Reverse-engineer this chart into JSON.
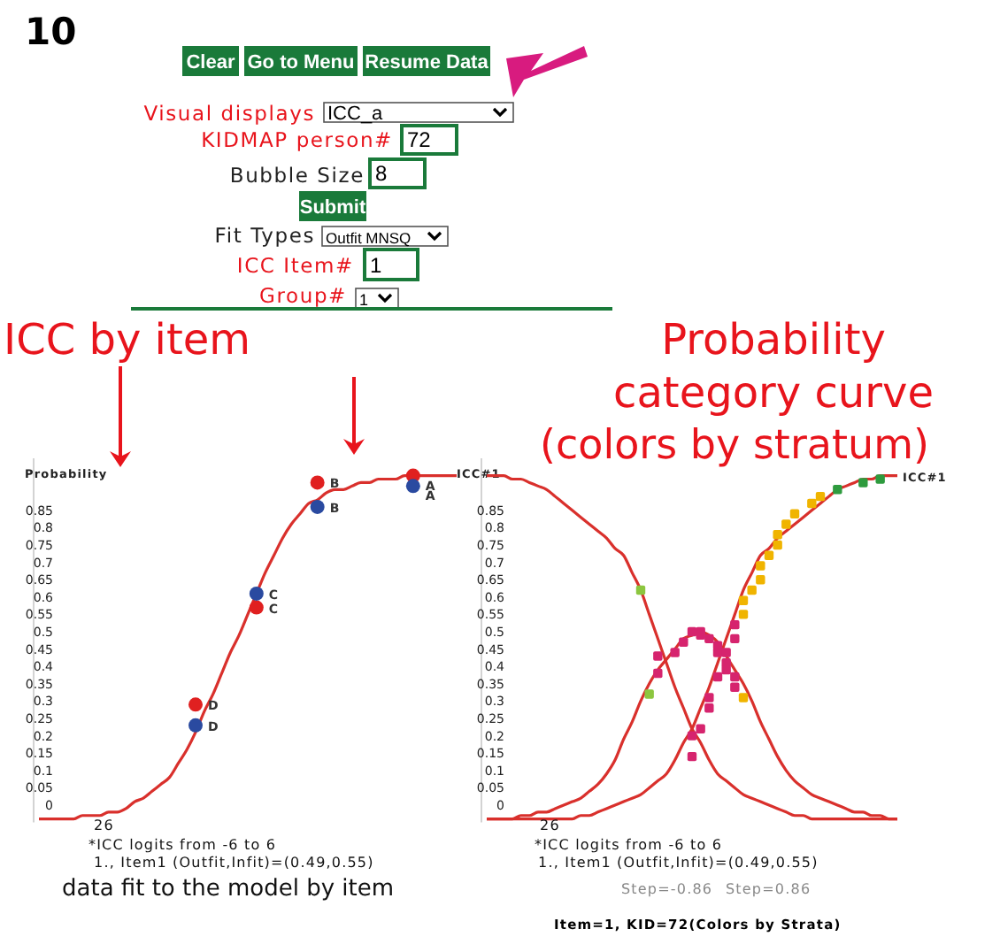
{
  "chart_data": [
    {
      "type": "other",
      "title": "10",
      "annotations": [
        "Clear",
        "Go to Menu",
        "Resume Data",
        "Visual displays",
        "ICC_a",
        "KIDMAP person#",
        "72",
        "Bubble Size",
        "8",
        "Submit",
        "Fit Types",
        "Outfit MNSQ",
        "ICC Item#",
        "1",
        "Group#",
        "1"
      ]
    },
    {
      "type": "line",
      "title": "ICC by item",
      "ylabel": "Probability",
      "ylim": [
        -0.05,
        1
      ],
      "yticks": [
        0,
        0.05,
        0.1,
        0.15,
        0.2,
        0.25,
        0.3,
        0.35,
        0.4,
        0.45,
        0.5,
        0.55,
        0.6,
        0.65,
        0.7,
        0.75,
        0.8,
        0.85
      ],
      "categories": [
        null,
        null,
        null,
        null,
        null,
        null,
        null,
        null,
        null,
        null,
        null,
        null,
        null,
        null,
        null,
        null,
        null,
        null,
        null,
        null,
        null,
        null,
        null,
        null,
        null,
        null,
        null,
        null,
        null,
        null,
        null,
        null,
        null,
        null,
        null,
        null,
        null,
        null,
        null,
        null,
        null,
        null,
        null,
        null,
        null,
        null,
        null,
        null,
        null
      ],
      "annotations": [
        "26",
        "*ICC logits from -6 to 6",
        "1., Item1 (Outfit,Infit)=(0.49,0.55)",
        "data fit to the model by item"
      ],
      "series": [
        {
          "type": "line",
          "color": "#d9302c",
          "values": [
            -0.04,
            -0.04,
            -0.04,
            -0.04,
            -0.04,
            -0.03,
            -0.03,
            -0.03,
            -0.02,
            -0.02,
            -0.01,
            0.01,
            0.02,
            0.04,
            0.06,
            0.08,
            0.12,
            0.16,
            0.21,
            0.27,
            0.32,
            0.38,
            0.44,
            0.49,
            0.55,
            0.61,
            0.67,
            0.72,
            0.77,
            0.81,
            0.84,
            0.87,
            0.88,
            0.9,
            0.91,
            0.91,
            0.92,
            0.93,
            0.93,
            0.94,
            0.94,
            0.94,
            0.95,
            0.95,
            0.95,
            0.95,
            0.95,
            0.95,
            0.95
          ]
        },
        {
          "type": "scatter",
          "marker": "circle",
          "color": "#e02020",
          "values": [
            null,
            null,
            null,
            null,
            null,
            null,
            null,
            null,
            null,
            null,
            null,
            null,
            null,
            null,
            null,
            null,
            null,
            null,
            0.29,
            null,
            null,
            null,
            null,
            null,
            null,
            0.57,
            null,
            null,
            null,
            null,
            null,
            null,
            0.93,
            null,
            null,
            null,
            null,
            null,
            null,
            null,
            null,
            null,
            null,
            0.95,
            null,
            null,
            null,
            null,
            null
          ],
          "value_labels": [
            null,
            null,
            null,
            null,
            null,
            null,
            null,
            null,
            null,
            null,
            null,
            null,
            null,
            null,
            null,
            null,
            null,
            null,
            "D",
            null,
            null,
            null,
            null,
            null,
            null,
            "C",
            null,
            null,
            null,
            null,
            null,
            null,
            "B",
            null,
            null,
            null,
            null,
            null,
            null,
            null,
            null,
            null,
            null,
            "A",
            null,
            null,
            null,
            null,
            null
          ]
        },
        {
          "type": "scatter",
          "marker": "circle",
          "color": "#2a4aa0",
          "values": [
            null,
            null,
            null,
            null,
            null,
            null,
            null,
            null,
            null,
            null,
            null,
            null,
            null,
            null,
            null,
            null,
            null,
            null,
            0.23,
            null,
            null,
            null,
            null,
            null,
            null,
            0.61,
            null,
            null,
            null,
            null,
            null,
            null,
            0.86,
            null,
            null,
            null,
            null,
            null,
            null,
            null,
            null,
            null,
            null,
            0.92,
            null,
            null,
            null,
            null,
            null
          ],
          "value_labels": [
            null,
            null,
            null,
            null,
            null,
            null,
            null,
            null,
            null,
            null,
            null,
            null,
            null,
            null,
            null,
            null,
            null,
            null,
            "D",
            null,
            null,
            null,
            null,
            null,
            null,
            "C",
            null,
            null,
            null,
            null,
            null,
            null,
            "B",
            null,
            null,
            null,
            null,
            null,
            null,
            null,
            null,
            null,
            null,
            "A",
            null,
            null,
            null,
            null,
            null
          ]
        }
      ]
    },
    {
      "type": "line",
      "title": "Probability category curve",
      "subtitle": "(colors by stratum)",
      "ylabel": "ICC#1",
      "y2label": "ICC#1",
      "ylim": [
        -0.05,
        1
      ],
      "yticks": [
        0,
        0.05,
        0.1,
        0.15,
        0.2,
        0.25,
        0.3,
        0.35,
        0.4,
        0.45,
        0.5,
        0.55,
        0.6,
        0.65,
        0.7,
        0.75,
        0.8,
        0.85
      ],
      "categories": [
        null,
        null,
        null,
        null,
        null,
        null,
        null,
        null,
        null,
        null,
        null,
        null,
        null,
        null,
        null,
        null,
        null,
        null,
        null,
        null,
        null,
        null,
        null,
        null,
        null,
        null,
        null,
        null,
        null,
        null,
        null,
        null,
        null,
        null,
        null,
        null,
        null,
        null,
        null,
        null,
        null,
        null,
        null,
        null,
        null,
        null,
        null,
        null,
        null
      ],
      "annotations": [
        "26",
        "*ICC logits from -6 to 6",
        "1., Item1 (Outfit,Infit)=(0.49,0.55)",
        "Step=-0.86",
        "Step=0.86",
        "Item=1, KID=72(Colors by Strata)"
      ],
      "series": [
        {
          "type": "line",
          "color": "#d9302c",
          "values": [
            0.95,
            0.95,
            0.95,
            0.94,
            0.94,
            0.93,
            0.92,
            0.91,
            0.89,
            0.87,
            0.85,
            0.83,
            0.81,
            0.79,
            0.77,
            0.74,
            0.72,
            0.67,
            0.62,
            0.55,
            0.48,
            0.41,
            0.34,
            0.28,
            0.22,
            0.18,
            0.13,
            0.09,
            0.07,
            0.05,
            0.03,
            0.02,
            0.01,
            0,
            -0.01,
            -0.02,
            -0.03,
            -0.03,
            -0.04,
            -0.04,
            -0.04,
            -0.04,
            -0.04,
            -0.04,
            -0.04,
            -0.04,
            -0.04,
            -0.04,
            -0.04
          ]
        },
        {
          "type": "line",
          "color": "#d9302c",
          "values": [
            -0.04,
            -0.04,
            -0.04,
            -0.04,
            -0.04,
            -0.04,
            -0.04,
            -0.04,
            -0.04,
            -0.04,
            -0.04,
            -0.03,
            -0.03,
            -0.02,
            -0.01,
            0,
            0.01,
            0.02,
            0.03,
            0.05,
            0.07,
            0.09,
            0.13,
            0.18,
            0.22,
            0.28,
            0.34,
            0.41,
            0.48,
            0.55,
            0.62,
            0.67,
            0.72,
            0.74,
            0.77,
            0.79,
            0.81,
            0.83,
            0.85,
            0.87,
            0.89,
            0.91,
            0.92,
            0.93,
            0.94,
            0.94,
            0.95,
            0.95,
            0.95
          ]
        },
        {
          "type": "line",
          "color": "#d9302c",
          "values": [
            -0.04,
            -0.04,
            -0.04,
            -0.04,
            -0.03,
            -0.03,
            -0.02,
            -0.02,
            -0.01,
            0,
            0.01,
            0.02,
            0.04,
            0.06,
            0.09,
            0.13,
            0.19,
            0.24,
            0.3,
            0.35,
            0.39,
            0.42,
            0.45,
            0.48,
            0.49,
            0.5,
            0.49,
            0.47,
            0.43,
            0.39,
            0.35,
            0.3,
            0.24,
            0.19,
            0.14,
            0.1,
            0.07,
            0.05,
            0.03,
            0.02,
            0.01,
            0,
            -0.01,
            -0.02,
            -0.02,
            -0.03,
            -0.03,
            -0.04,
            -0.04
          ]
        },
        {
          "type": "scatter",
          "marker": "square",
          "color": "#d6246e",
          "values": [
            null,
            null,
            null,
            null,
            null,
            null,
            null,
            null,
            null,
            null,
            null,
            null,
            null,
            null,
            null,
            null,
            null,
            null,
            null,
            null,
            0.38,
            null,
            0.44,
            0.47,
            0.5,
            0.5,
            0.48,
            0.46,
            0.41,
            0.37,
            null,
            null,
            null,
            null,
            null,
            null,
            null,
            null,
            null,
            null,
            null,
            null,
            null,
            null,
            null,
            null,
            null,
            null,
            null
          ]
        },
        {
          "type": "scatter",
          "marker": "square",
          "color": "#d6246e",
          "values": [
            null,
            null,
            null,
            null,
            null,
            null,
            null,
            null,
            null,
            null,
            null,
            null,
            null,
            null,
            null,
            null,
            null,
            null,
            null,
            null,
            0.43,
            null,
            null,
            null,
            null,
            0.49,
            null,
            0.44,
            0.39,
            0.34,
            null,
            null,
            null,
            null,
            null,
            null,
            null,
            null,
            null,
            null,
            null,
            null,
            null,
            null,
            null,
            null,
            null,
            null,
            null
          ]
        },
        {
          "type": "scatter",
          "marker": "square",
          "color": "#d6246e",
          "values": [
            null,
            null,
            null,
            null,
            null,
            null,
            null,
            null,
            null,
            null,
            null,
            null,
            null,
            null,
            null,
            null,
            null,
            null,
            null,
            null,
            null,
            null,
            null,
            null,
            0.14,
            0.22,
            0.28,
            0.37,
            0.44,
            0.48,
            null,
            null,
            null,
            null,
            null,
            null,
            null,
            null,
            null,
            null,
            null,
            null,
            null,
            null,
            null,
            null,
            null,
            null,
            null
          ]
        },
        {
          "type": "scatter",
          "marker": "square",
          "color": "#d6246e",
          "values": [
            null,
            null,
            null,
            null,
            null,
            null,
            null,
            null,
            null,
            null,
            null,
            null,
            null,
            null,
            null,
            null,
            null,
            null,
            null,
            null,
            null,
            null,
            null,
            null,
            0.2,
            null,
            0.31,
            null,
            null,
            0.52,
            null,
            null,
            null,
            null,
            null,
            null,
            null,
            null,
            null,
            null,
            null,
            null,
            null,
            null,
            null,
            null,
            null,
            null,
            null
          ]
        },
        {
          "type": "scatter",
          "marker": "square",
          "color": "#f0b400",
          "values": [
            null,
            null,
            null,
            null,
            null,
            null,
            null,
            null,
            null,
            null,
            null,
            null,
            null,
            null,
            null,
            null,
            null,
            null,
            null,
            null,
            null,
            null,
            null,
            null,
            null,
            null,
            null,
            null,
            null,
            null,
            0.31,
            0.62,
            0.69,
            null,
            0.75,
            0.81,
            null,
            null,
            0.87,
            null,
            null,
            null,
            null,
            null,
            null,
            null,
            null,
            null,
            null
          ]
        },
        {
          "type": "scatter",
          "marker": "square",
          "color": "#f0b400",
          "values": [
            null,
            null,
            null,
            null,
            null,
            null,
            null,
            null,
            null,
            null,
            null,
            null,
            null,
            null,
            null,
            null,
            null,
            null,
            null,
            null,
            null,
            null,
            null,
            null,
            null,
            null,
            null,
            null,
            null,
            null,
            0.59,
            null,
            0.65,
            0.72,
            0.78,
            null,
            0.84,
            null,
            null,
            0.89,
            null,
            null,
            null,
            null,
            null,
            null,
            null,
            null,
            null
          ]
        },
        {
          "type": "scatter",
          "marker": "square",
          "color": "#f0b400",
          "values": [
            null,
            null,
            null,
            null,
            null,
            null,
            null,
            null,
            null,
            null,
            null,
            null,
            null,
            null,
            null,
            null,
            null,
            null,
            null,
            null,
            null,
            null,
            null,
            null,
            null,
            null,
            null,
            null,
            null,
            null,
            0.55,
            null,
            null,
            null,
            null,
            null,
            null,
            null,
            null,
            null,
            null,
            null,
            null,
            null,
            null,
            null,
            null,
            null,
            null
          ]
        },
        {
          "type": "scatter",
          "marker": "square",
          "color": "#8cc63f",
          "values": [
            null,
            null,
            null,
            null,
            null,
            null,
            null,
            null,
            null,
            null,
            null,
            null,
            null,
            null,
            null,
            null,
            null,
            null,
            0.62,
            0.32,
            null,
            null,
            null,
            null,
            null,
            null,
            null,
            null,
            null,
            null,
            null,
            null,
            null,
            null,
            null,
            null,
            null,
            null,
            null,
            null,
            null,
            null,
            null,
            null,
            null,
            null,
            null,
            null,
            null
          ]
        },
        {
          "type": "scatter",
          "marker": "square",
          "color": "#2e9b3e",
          "values": [
            null,
            null,
            null,
            null,
            null,
            null,
            null,
            null,
            null,
            null,
            null,
            null,
            null,
            null,
            null,
            null,
            null,
            null,
            null,
            null,
            null,
            null,
            null,
            null,
            null,
            null,
            null,
            null,
            null,
            null,
            null,
            null,
            null,
            null,
            null,
            null,
            null,
            null,
            null,
            null,
            null,
            0.91,
            null,
            null,
            0.93,
            null,
            0.94,
            null,
            null
          ]
        }
      ]
    }
  ]
}
